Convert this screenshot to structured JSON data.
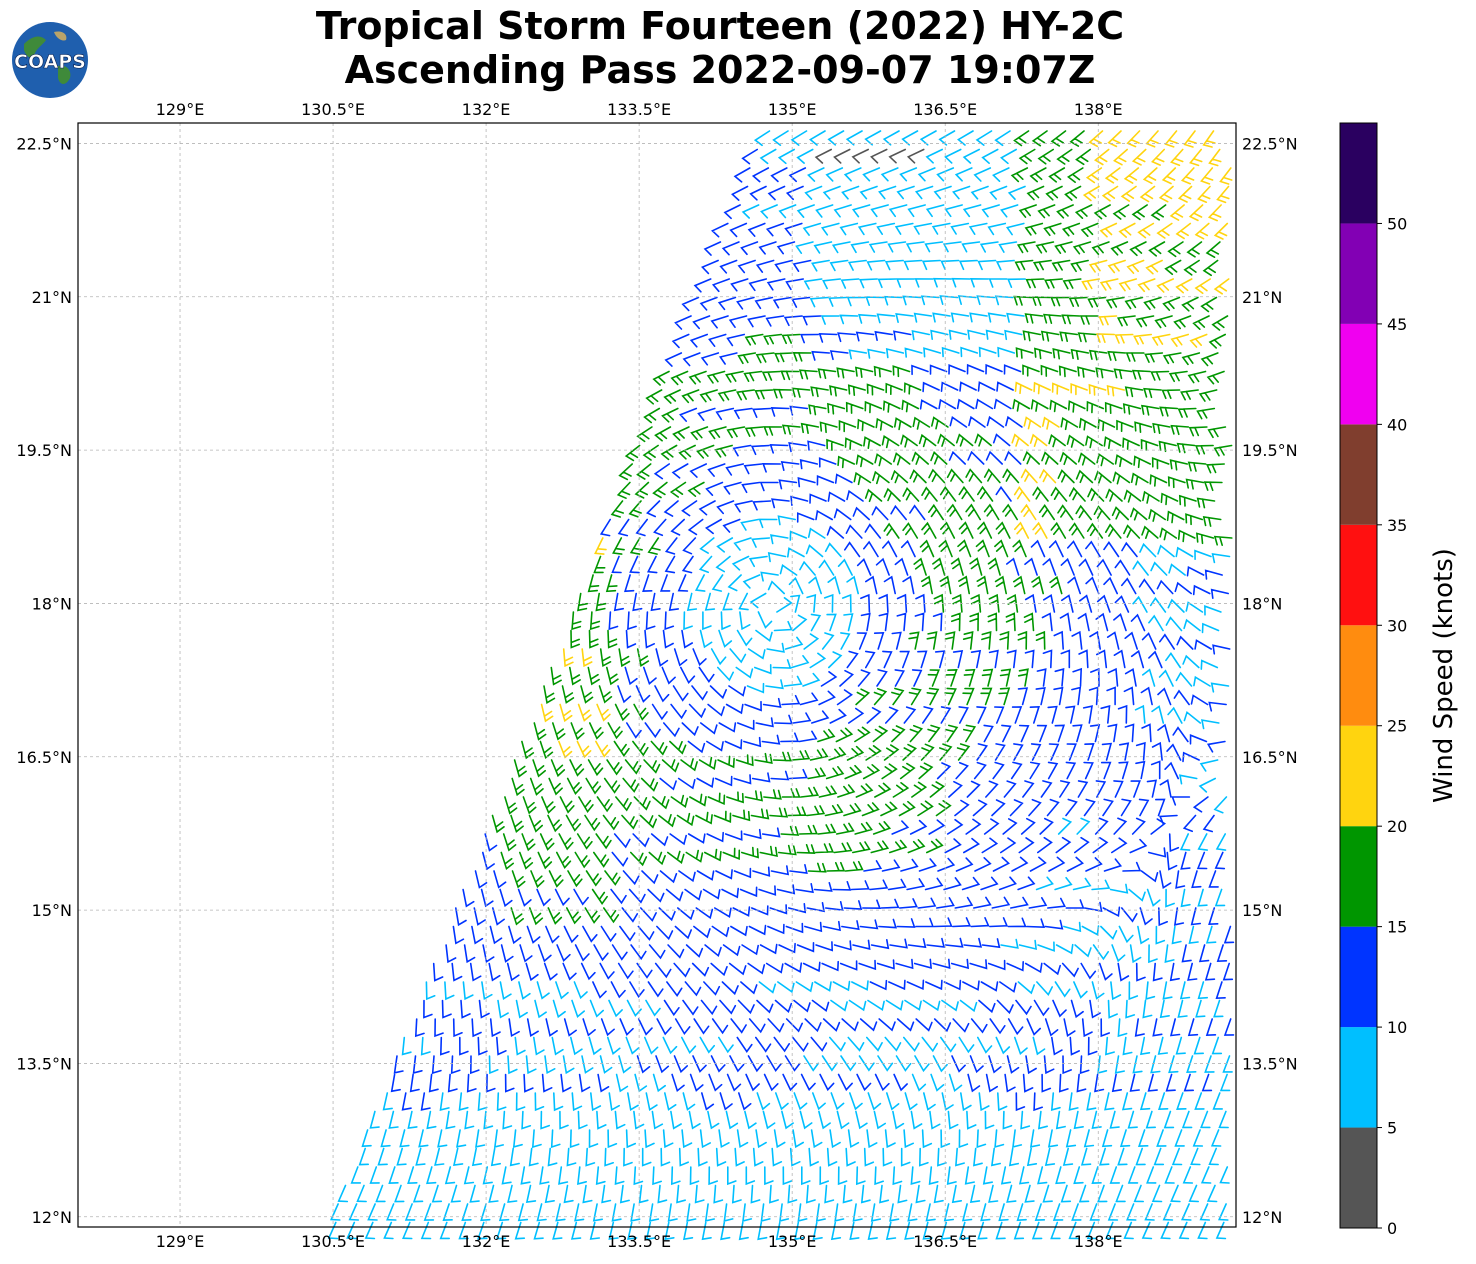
{
  "title": {
    "line1": "Tropical Storm Fourteen (2022) HY-2C",
    "line2": "Ascending Pass 2022-09-07 19:07Z"
  },
  "logo": {
    "text": "COAPS",
    "icon": "globe-logo-icon"
  },
  "map": {
    "lon_ticks": [
      "129°E",
      "130.5°E",
      "132°E",
      "133.5°E",
      "135°E",
      "136.5°E",
      "138°E"
    ],
    "lat_ticks": [
      "22.5°N",
      "21°N",
      "19.5°N",
      "18°N",
      "16.5°N",
      "15°N",
      "13.5°N",
      "12°N"
    ],
    "lon_range": [
      128.0,
      139.35
    ],
    "lat_range": [
      11.9,
      22.7
    ],
    "grid": true,
    "storm_center": {
      "lon": 134.8,
      "lat": 18.0
    },
    "swath": {
      "east_edge_lon": 139.35,
      "west_edge_bottom": {
        "lon": 130.5,
        "lat": 12.0
      },
      "west_edge_top": {
        "lon": 134.8,
        "lat": 22.8
      }
    }
  },
  "colorbar": {
    "label": "Wind Speed (knots)",
    "ticks": [
      "0",
      "5",
      "10",
      "15",
      "20",
      "25",
      "30",
      "35",
      "40",
      "45",
      "50"
    ],
    "bins": [
      {
        "min": 0,
        "max": 5,
        "color": "#555555"
      },
      {
        "min": 5,
        "max": 10,
        "color": "#00bfff"
      },
      {
        "min": 10,
        "max": 15,
        "color": "#0034ff"
      },
      {
        "min": 15,
        "max": 20,
        "color": "#009600"
      },
      {
        "min": 20,
        "max": 25,
        "color": "#ffd40f"
      },
      {
        "min": 25,
        "max": 30,
        "color": "#ff8c0f"
      },
      {
        "min": 30,
        "max": 35,
        "color": "#ff1010"
      },
      {
        "min": 35,
        "max": 40,
        "color": "#803e2e"
      },
      {
        "min": 40,
        "max": 45,
        "color": "#f000f0"
      },
      {
        "min": 45,
        "max": 50,
        "color": "#8200b4"
      },
      {
        "min": 50,
        "max": 55,
        "color": "#2a0060"
      }
    ]
  }
}
